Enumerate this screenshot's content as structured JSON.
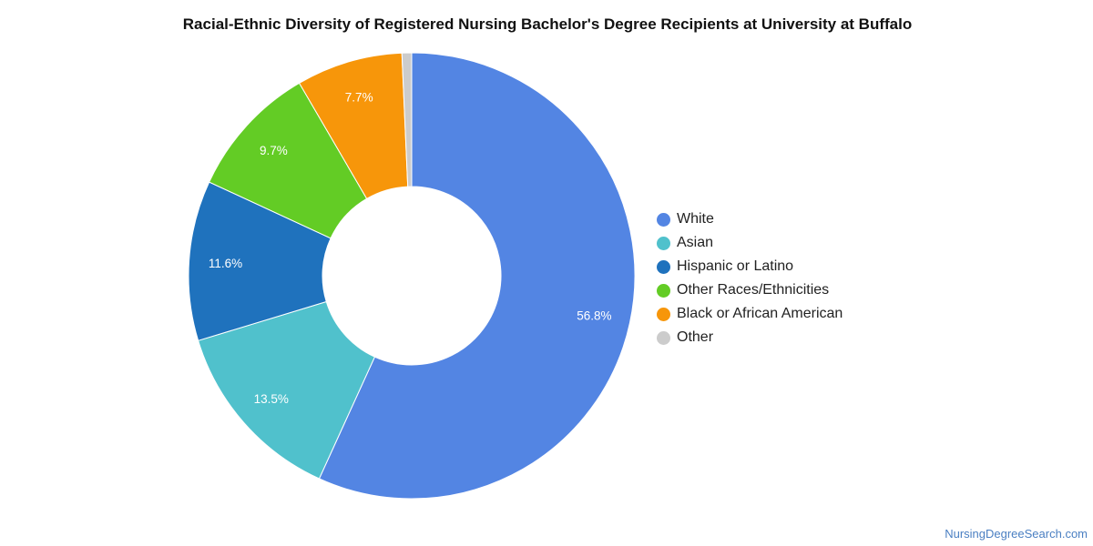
{
  "chart_data": {
    "type": "pie",
    "title": "Racial-Ethnic Diversity of Registered Nursing Bachelor's Degree Recipients at University at Buffalo",
    "categories": [
      "White",
      "Asian",
      "Hispanic or Latino",
      "Other Races/Ethnicities",
      "Black or African American",
      "Other"
    ],
    "values": [
      56.8,
      13.5,
      11.6,
      9.7,
      7.7,
      0.7
    ],
    "value_labels": [
      "56.8%",
      "13.5%",
      "11.6%",
      "9.7%",
      "7.7%",
      ""
    ],
    "colors": [
      "#5385e3",
      "#50c1cc",
      "#1f72bd",
      "#63cc25",
      "#f7960a",
      "#cccccc"
    ],
    "donut": true,
    "legend_position": "right"
  },
  "watermark": "NursingDegreeSearch.com"
}
